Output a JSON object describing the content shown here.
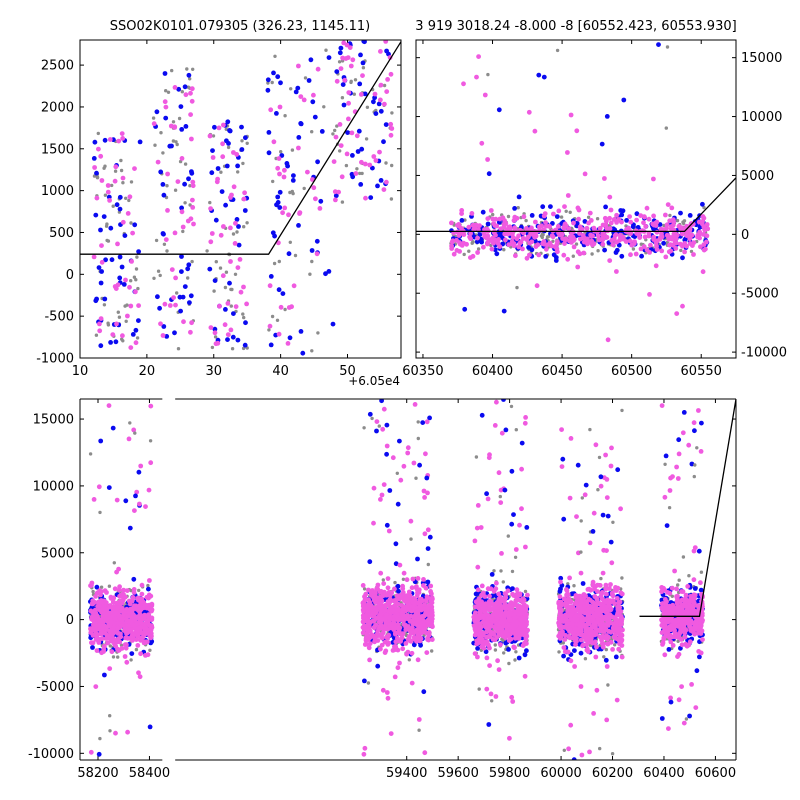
{
  "chart_data": [
    {
      "id": "top-left",
      "type": "scatter",
      "title": "SSO02K0101.079305 (326.23, 1145.11)",
      "xlabel": "",
      "ylabel": "",
      "x_offset_label": "+6.05e4",
      "xlim": [
        10,
        58
      ],
      "ylim": [
        -1000,
        2800
      ],
      "xticks": [
        10,
        20,
        30,
        40,
        50
      ],
      "yticks": [
        -1000,
        -500,
        0,
        500,
        1000,
        1500,
        2000,
        2500
      ],
      "grid": false,
      "series_colors": {
        "gray": "#8c8c8c",
        "blue": "#0a0af0",
        "pink": "#f05ae0"
      },
      "model_line": {
        "x": [
          10,
          38.2,
          58
        ],
        "y": [
          240,
          240,
          2780
        ]
      },
      "clusters": [
        {
          "x": [
            12,
            19
          ],
          "y": [
            -900,
            1800
          ],
          "n": [
            50,
            45,
            42
          ]
        },
        {
          "x": [
            21,
            27
          ],
          "y": [
            -900,
            2500
          ],
          "n": [
            42,
            38,
            40
          ]
        },
        {
          "x": [
            29,
            35
          ],
          "y": [
            -900,
            1900
          ],
          "n": [
            45,
            40,
            40
          ]
        },
        {
          "x": [
            38,
            48
          ],
          "y": [
            -1000,
            2700
          ],
          "n": [
            30,
            50,
            35
          ]
        },
        {
          "x": [
            48,
            57
          ],
          "y": [
            800,
            2800
          ],
          "n": [
            35,
            40,
            50
          ]
        }
      ]
    },
    {
      "id": "top-right",
      "type": "scatter",
      "title": "3 919 3018.24 -8.000 -8 [60552.423, 60553.930]",
      "xlabel": "",
      "ylabel": "",
      "xlim": [
        60345,
        60575
      ],
      "ylim": [
        -10500,
        16500
      ],
      "xticks": [
        60350,
        60400,
        60450,
        60500,
        60550
      ],
      "yticks": [
        -10000,
        -5000,
        0,
        5000,
        10000,
        15000
      ],
      "grid": false,
      "series_colors": {
        "gray": "#8c8c8c",
        "blue": "#0a0af0",
        "pink": "#f05ae0"
      },
      "model_line": {
        "x": [
          60345,
          60538,
          60575
        ],
        "y": [
          250,
          250,
          4800
        ]
      },
      "clusters": [
        {
          "x": [
            60370,
            60555
          ],
          "y": [
            -2500,
            2500
          ],
          "n": [
            220,
            260,
            420
          ],
          "outliers": 40
        }
      ]
    },
    {
      "id": "bottom",
      "type": "scatter",
      "title": "",
      "xlabel": "",
      "ylabel": "",
      "xlim": [
        58130,
        60680
      ],
      "ylim": [
        -10500,
        16500
      ],
      "xticks": [
        58200,
        58400,
        59400,
        59600,
        59800,
        60000,
        60200,
        60400,
        60600
      ],
      "yticks": [
        -10000,
        -5000,
        0,
        5000,
        10000,
        15000
      ],
      "axis_break": [
        58450,
        58500
      ],
      "grid": false,
      "series_colors": {
        "gray": "#8c8c8c",
        "blue": "#0a0af0",
        "pink": "#f05ae0"
      },
      "model_line": {
        "x": [
          60305,
          60538,
          60680
        ],
        "y": [
          250,
          250,
          16500
        ]
      },
      "clusters": [
        {
          "x": [
            58170,
            58410
          ],
          "y": [
            -3000,
            3000
          ],
          "n": [
            220,
            200,
            520
          ],
          "outliers": 45
        },
        {
          "x": [
            59230,
            59500
          ],
          "y": [
            -3000,
            3500
          ],
          "n": [
            240,
            200,
            560
          ],
          "outliers": 70
        },
        {
          "x": [
            59660,
            59870
          ],
          "y": [
            -3000,
            3000
          ],
          "n": [
            230,
            220,
            480
          ],
          "outliers": 55
        },
        {
          "x": [
            59990,
            60240
          ],
          "y": [
            -3500,
            3500
          ],
          "n": [
            230,
            220,
            500
          ],
          "outliers": 55
        },
        {
          "x": [
            60390,
            60550
          ],
          "y": [
            -2500,
            3000
          ],
          "n": [
            160,
            180,
            340
          ],
          "outliers": 45
        }
      ]
    }
  ]
}
